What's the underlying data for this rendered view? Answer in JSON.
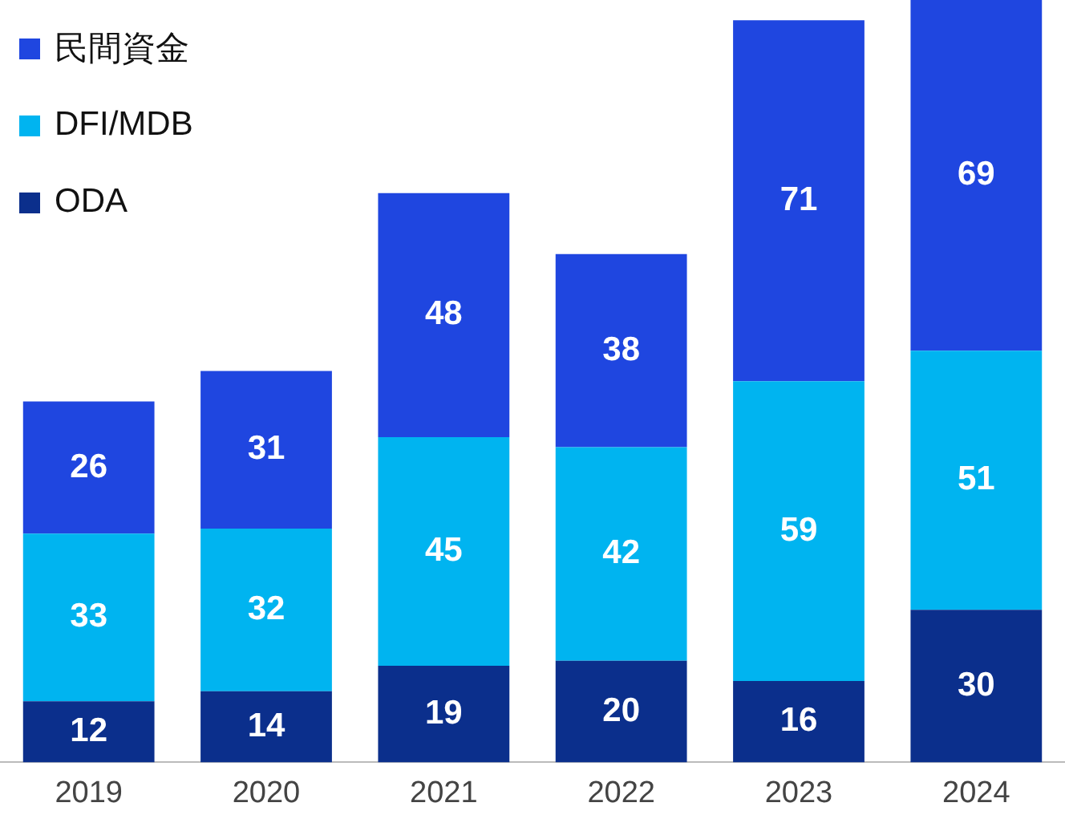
{
  "chart_data": {
    "type": "bar",
    "stacked": true,
    "categories": [
      "2019",
      "2020",
      "2021",
      "2022",
      "2023",
      "2024"
    ],
    "series": [
      {
        "name": "ODA",
        "color": "#0b2f8c",
        "values": [
          12,
          14,
          19,
          20,
          16,
          30
        ]
      },
      {
        "name": "DFI/MDB",
        "color": "#00b4f0",
        "values": [
          33,
          32,
          45,
          42,
          59,
          51
        ]
      },
      {
        "name": "民間資金",
        "color": "#1f46e0",
        "values": [
          26,
          31,
          48,
          38,
          71,
          69
        ]
      }
    ],
    "data_labels": true,
    "legend": "top left",
    "grid": false
  }
}
